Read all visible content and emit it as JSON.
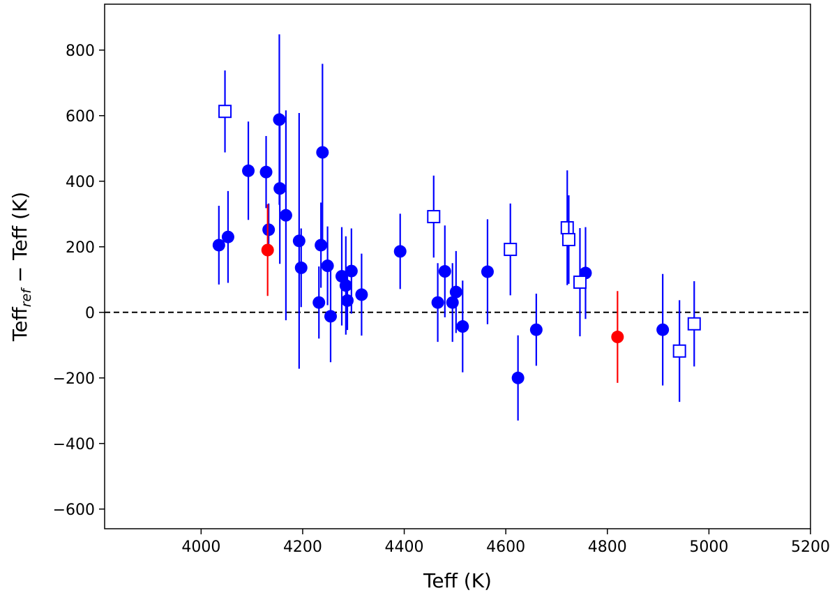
{
  "chart_data": {
    "type": "scatter",
    "title": "",
    "xlabel": "Teff (K)",
    "ylabel": {
      "main": "Teff",
      "sub": "ref",
      "rest": " − Teff (K)"
    },
    "xlim": [
      3810,
      5200
    ],
    "ylim": [
      -660,
      940
    ],
    "xticks": [
      4000,
      4200,
      4400,
      4600,
      4800,
      5000,
      5200
    ],
    "xtick_labels": [
      "4000",
      "4200",
      "4400",
      "4600",
      "4800",
      "5000",
      "5200"
    ],
    "yticks": [
      800,
      600,
      400,
      200,
      0,
      -200,
      -400,
      -600
    ],
    "ytick_labels": [
      "800",
      "600",
      "400",
      "200",
      "0",
      "−200",
      "−400",
      "−600"
    ],
    "grid": false,
    "reference_line": {
      "y": 0,
      "style": "dashed",
      "color": "#000000"
    },
    "series": [
      {
        "marker": "filled-circle",
        "color": "#0000ff",
        "points": [
          {
            "x": 4035,
            "y": 205,
            "err": 120
          },
          {
            "x": 4053,
            "y": 230,
            "err": 140
          },
          {
            "x": 4093,
            "y": 432,
            "err": 150
          },
          {
            "x": 4128,
            "y": 428,
            "err": 110
          },
          {
            "x": 4133,
            "y": 252,
            "err": 80
          },
          {
            "x": 4154,
            "y": 588,
            "err": 260
          },
          {
            "x": 4155,
            "y": 378,
            "err": 230
          },
          {
            "x": 4167,
            "y": 296,
            "err": 320
          },
          {
            "x": 4193,
            "y": 218,
            "err": 390
          },
          {
            "x": 4197,
            "y": 136,
            "err": 120
          },
          {
            "x": 4232,
            "y": 30,
            "err": 110
          },
          {
            "x": 4236,
            "y": 205,
            "err": 130
          },
          {
            "x": 4239,
            "y": 488,
            "err": 270
          },
          {
            "x": 4249,
            "y": 142,
            "err": 120
          },
          {
            "x": 4255,
            "y": -12,
            "err": 140
          },
          {
            "x": 4277,
            "y": 110,
            "err": 150
          },
          {
            "x": 4285,
            "y": 82,
            "err": 150
          },
          {
            "x": 4288,
            "y": 36,
            "err": 90
          },
          {
            "x": 4296,
            "y": 126,
            "err": 130
          },
          {
            "x": 4316,
            "y": 54,
            "err": 125
          },
          {
            "x": 4392,
            "y": 186,
            "err": 115
          },
          {
            "x": 4466,
            "y": 30,
            "err": 120
          },
          {
            "x": 4480,
            "y": 125,
            "err": 140
          },
          {
            "x": 4495,
            "y": 30,
            "err": 120
          },
          {
            "x": 4502,
            "y": 62,
            "err": 125
          },
          {
            "x": 4515,
            "y": -43,
            "err": 140
          },
          {
            "x": 4564,
            "y": 124,
            "err": 160
          },
          {
            "x": 4624,
            "y": -200,
            "err": 130
          },
          {
            "x": 4660,
            "y": -53,
            "err": 110
          },
          {
            "x": 4757,
            "y": 120,
            "err": 140
          },
          {
            "x": 4909,
            "y": -53,
            "err": 170
          }
        ]
      },
      {
        "marker": "filled-circle",
        "color": "#ff0000",
        "points": [
          {
            "x": 4131,
            "y": 190,
            "err": 140
          },
          {
            "x": 4820,
            "y": -75,
            "err": 140
          }
        ]
      },
      {
        "marker": "open-square",
        "color": "#0000ff",
        "points": [
          {
            "x": 4047,
            "y": 613,
            "err": 125
          },
          {
            "x": 4458,
            "y": 292,
            "err": 125
          },
          {
            "x": 4609,
            "y": 192,
            "err": 140
          },
          {
            "x": 4721,
            "y": 258,
            "err": 175
          },
          {
            "x": 4724,
            "y": 222,
            "err": 135
          },
          {
            "x": 4746,
            "y": 92,
            "err": 165
          },
          {
            "x": 4942,
            "y": -118,
            "err": 155
          },
          {
            "x": 4971,
            "y": -35,
            "err": 130
          }
        ]
      }
    ]
  }
}
